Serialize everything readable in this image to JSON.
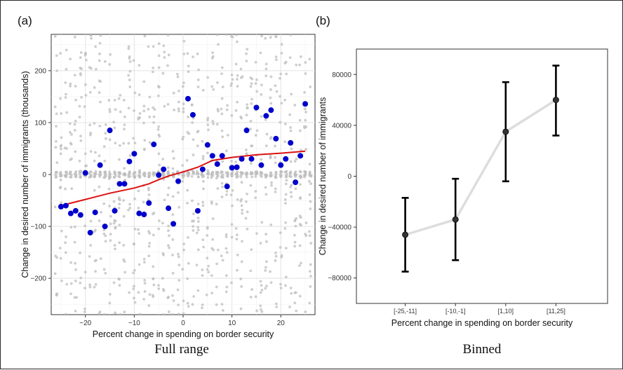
{
  "panels": {
    "a": {
      "tag": "(a)",
      "caption": "Full range",
      "chart_data": {
        "type": "scatter",
        "xlabel": "Percent change in spending on border security",
        "ylabel": "Change in desired number of immigrants (thousands)",
        "xlim": [
          -27,
          27
        ],
        "ylim": [
          -270,
          270
        ],
        "xticks": [
          -20,
          -10,
          0,
          10,
          20
        ],
        "yticks": [
          -200,
          -100,
          0,
          100,
          200
        ],
        "grid": true,
        "background_points_color": "#bdbdbd",
        "series": [
          {
            "color": "#0000cc",
            "points": [
              [
                -25,
                -62
              ],
              [
                -24,
                -60
              ],
              [
                -23,
                -75
              ],
              [
                -22,
                -70
              ],
              [
                -21,
                -78
              ],
              [
                -20,
                3
              ],
              [
                -19,
                -112
              ],
              [
                -18,
                -73
              ],
              [
                -17,
                18
              ],
              [
                -16,
                -100
              ],
              [
                -15,
                85
              ],
              [
                -14,
                -70
              ],
              [
                -13,
                -18
              ],
              [
                -12,
                -18
              ],
              [
                -11,
                25
              ],
              [
                -10,
                40
              ],
              [
                -9,
                -75
              ],
              [
                -8,
                -77
              ],
              [
                -7,
                -55
              ],
              [
                -6,
                58
              ],
              [
                -5,
                -1
              ],
              [
                -4,
                10
              ],
              [
                -3,
                -65
              ],
              [
                -2,
                -95
              ],
              [
                -1,
                -13
              ],
              [
                1,
                146
              ],
              [
                2,
                115
              ],
              [
                3,
                -70
              ],
              [
                4,
                10
              ],
              [
                5,
                57
              ],
              [
                6,
                36
              ],
              [
                7,
                20
              ],
              [
                8,
                36
              ],
              [
                9,
                -23
              ],
              [
                10,
                13
              ],
              [
                11,
                14
              ],
              [
                12,
                30
              ],
              [
                13,
                85
              ],
              [
                14,
                30
              ],
              [
                15,
                129
              ],
              [
                16,
                18
              ],
              [
                17,
                113
              ],
              [
                18,
                124
              ],
              [
                19,
                69
              ],
              [
                20,
                18
              ],
              [
                21,
                30
              ],
              [
                22,
                61
              ],
              [
                23,
                -15
              ],
              [
                24,
                36
              ],
              [
                25,
                136
              ]
            ]
          },
          {
            "color": "#dd1111",
            "points": [
              [
                -25,
                -60
              ],
              [
                -20,
                -48
              ],
              [
                -15,
                -36
              ],
              [
                -10,
                -26
              ],
              [
                -7,
                -18
              ],
              [
                -5,
                -10
              ],
              [
                -3,
                -3
              ],
              [
                0,
                5
              ],
              [
                3,
                14
              ],
              [
                6,
                27
              ],
              [
                10,
                33
              ],
              [
                15,
                38
              ],
              [
                20,
                41
              ],
              [
                25,
                45
              ]
            ]
          }
        ]
      }
    },
    "b": {
      "tag": "(b)",
      "caption": "Binned",
      "chart_data": {
        "type": "line",
        "xlabel": "Percent change in spending on border security",
        "ylabel": "Change in desired number of immigrants",
        "categories": [
          "[-25,-11]",
          "[-10,-1]",
          "[1,10]",
          "[11,25]"
        ],
        "ylim": [
          -100000,
          100000
        ],
        "yticks": [
          -80000,
          -40000,
          0,
          40000,
          80000
        ],
        "grid": false,
        "line_color": "#dddddd",
        "point_color": "#333333",
        "series": [
          {
            "values": [
              -46000,
              -34000,
              35000,
              60000
            ],
            "lower": [
              -75000,
              -66000,
              -4000,
              32000
            ],
            "upper": [
              -17000,
              -2000,
              74000,
              87000
            ]
          }
        ]
      }
    }
  }
}
